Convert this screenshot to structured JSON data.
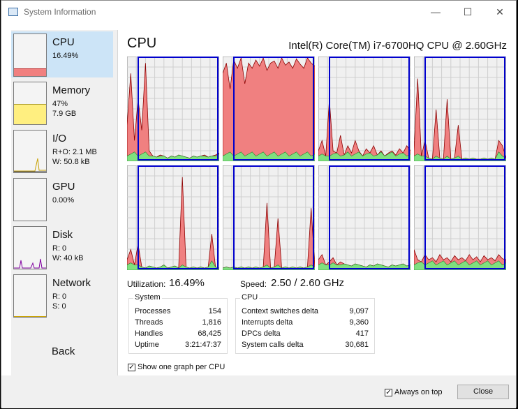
{
  "window": {
    "title": "System Information",
    "minimize": "—",
    "maximize": "☐",
    "close": "✕"
  },
  "sidebar": {
    "items": [
      {
        "name": "CPU",
        "values": [
          "16.49%"
        ],
        "fill": 0.17,
        "color": "#f08080"
      },
      {
        "name": "Memory",
        "values": [
          "47%",
          "7.9 GB"
        ],
        "fill": 0.47,
        "color": "#ffef80"
      },
      {
        "name": "I/O",
        "values": [
          "R+O: 2.1 MB",
          "W: 50.8 kB"
        ]
      },
      {
        "name": "GPU",
        "values": [
          "0.00%"
        ]
      },
      {
        "name": "Disk",
        "values": [
          "R: 0",
          "W: 40 kB"
        ]
      },
      {
        "name": "Network",
        "values": [
          "R: 0",
          "S: 0"
        ]
      }
    ],
    "back_label": "Back"
  },
  "cpu": {
    "title": "CPU",
    "model": "Intel(R) Core(TM) i7-6700HQ CPU @ 2.60GHz",
    "utilization_label": "Utilization:",
    "utilization_value": "16.49%",
    "speed_label": "Speed:",
    "speed_value": "2.50 / 2.60 GHz",
    "core_levels": [
      [
        0.35,
        0.85,
        0.2,
        0.6,
        0.3,
        0.95,
        0.1,
        0.05,
        0.04,
        0.06,
        0.05,
        0.03,
        0.05,
        0.04,
        0.06,
        0.05,
        0.04,
        0.03,
        0.05,
        0.04,
        0.05,
        0.06,
        0.04,
        0.05,
        0.06,
        0.08
      ],
      [
        0.85,
        0.95,
        0.7,
        0.98,
        0.9,
        1.0,
        0.75,
        0.95,
        0.9,
        0.98,
        0.92,
        1.0,
        0.88,
        0.95,
        0.97,
        0.9,
        1.0,
        0.93,
        0.96,
        0.9,
        0.99,
        0.94,
        0.9,
        1.0,
        0.95,
        0.92
      ],
      [
        0.1,
        0.2,
        0.05,
        0.6,
        0.1,
        0.08,
        0.25,
        0.06,
        0.15,
        0.08,
        0.2,
        0.1,
        0.05,
        0.12,
        0.08,
        0.15,
        0.06,
        0.1,
        0.05,
        0.08,
        0.1,
        0.06,
        0.12,
        0.08,
        0.15,
        0.1
      ],
      [
        0.1,
        0.8,
        0.05,
        0.2,
        0.03,
        0.02,
        0.5,
        0.03,
        0.02,
        0.6,
        0.02,
        0.03,
        0.35,
        0.02,
        0.03,
        0.02,
        0.03,
        0.02,
        0.02,
        0.03,
        0.02,
        0.03,
        0.02,
        0.2,
        0.15,
        0.03
      ],
      [
        0.1,
        0.2,
        0.05,
        0.25,
        0.03,
        0.02,
        0.04,
        0.03,
        0.02,
        0.03,
        0.05,
        0.02,
        0.03,
        0.04,
        0.02,
        0.9,
        0.03,
        0.02,
        0.03,
        0.02,
        0.03,
        0.02,
        0.03,
        0.35,
        0.03,
        0.02
      ],
      [
        0.02,
        0.03,
        0.02,
        0.03,
        0.02,
        0.03,
        0.02,
        0.03,
        0.02,
        0.03,
        0.02,
        0.03,
        0.65,
        0.02,
        0.03,
        0.5,
        0.02,
        0.03,
        0.02,
        0.03,
        0.02,
        0.03,
        0.02,
        0.03,
        0.6,
        0.03
      ],
      [
        0.1,
        0.15,
        0.05,
        0.08,
        0.12,
        0.05,
        0.08,
        0.06,
        0.05,
        0.04,
        0.06,
        0.05,
        0.04,
        0.03,
        0.05,
        0.04,
        0.06,
        0.05,
        0.04,
        0.03,
        0.05,
        0.04,
        0.05,
        0.06,
        0.04,
        0.05
      ],
      [
        0.2,
        0.1,
        0.08,
        0.15,
        0.1,
        0.12,
        0.08,
        0.15,
        0.1,
        0.12,
        0.08,
        0.14,
        0.1,
        0.12,
        0.09,
        0.15,
        0.1,
        0.13,
        0.08,
        0.14,
        0.1,
        0.12,
        0.09,
        0.15,
        0.11,
        0.1
      ]
    ]
  },
  "system": {
    "title": "System",
    "rows": [
      {
        "label": "Processes",
        "value": "154"
      },
      {
        "label": "Threads",
        "value": "1,816"
      },
      {
        "label": "Handles",
        "value": "68,425"
      },
      {
        "label": "Uptime",
        "value": "3:21:47:37"
      }
    ]
  },
  "cpu_stats": {
    "title": "CPU",
    "rows": [
      {
        "label": "Context switches delta",
        "value": "9,097"
      },
      {
        "label": "Interrupts delta",
        "value": "9,360"
      },
      {
        "label": "DPCs delta",
        "value": "417"
      },
      {
        "label": "System calls delta",
        "value": "30,681"
      }
    ]
  },
  "options": {
    "show_one_graph": "Show one graph per CPU",
    "show_one_checked": true
  },
  "footer": {
    "always_on_top": "Always on top",
    "always_on_top_checked": true,
    "close_label": "Close"
  },
  "colors": {
    "cpu_fill": "#f08080",
    "kernel_fill": "#7fe07f",
    "grid": "#cfcfcf",
    "highlight": "#0000cc"
  }
}
